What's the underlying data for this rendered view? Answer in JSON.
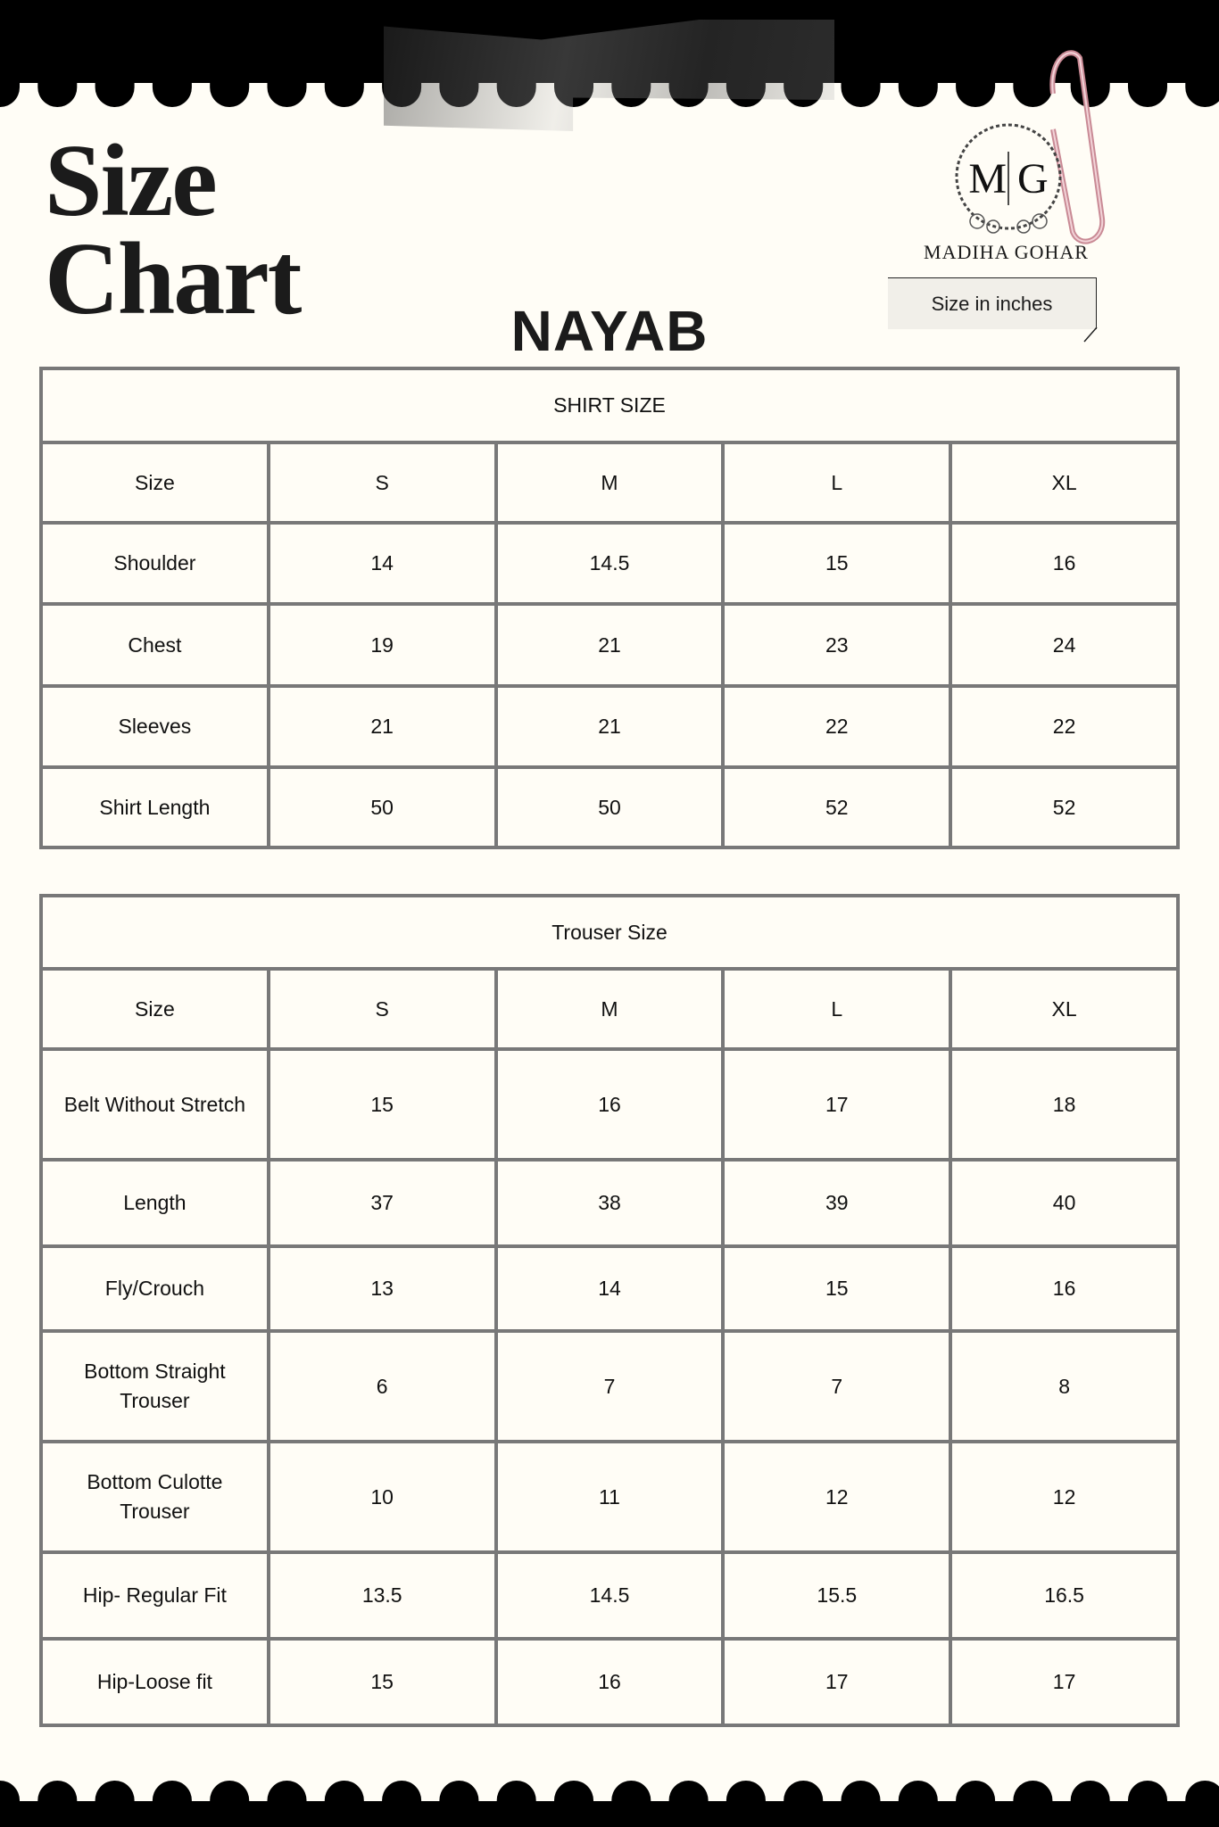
{
  "title": "Size Chart",
  "title_line1": "Size",
  "title_line2": "Chart",
  "product": "NAYAB",
  "brand": {
    "name": "MADIHA GOHAR",
    "monogram": "M|G"
  },
  "note": "Size in inches",
  "colors": {
    "background": "#fffdf6",
    "band": "#000000",
    "border": "#787878",
    "paperclip": "#d9a0aa"
  },
  "shirt": {
    "heading": "SHIRT SIZE",
    "columns": [
      "Size",
      "S",
      "M",
      "L",
      "XL"
    ],
    "rows": [
      [
        "Shoulder",
        "14",
        "14.5",
        "15",
        "16"
      ],
      [
        "Chest",
        "19",
        "21",
        "23",
        "24"
      ],
      [
        "Sleeves",
        "21",
        "21",
        "22",
        "22"
      ],
      [
        "Shirt Length",
        "50",
        "50",
        "52",
        "52"
      ]
    ]
  },
  "trouser": {
    "heading": "Trouser Size",
    "columns": [
      "Size",
      "S",
      "M",
      "L",
      "XL"
    ],
    "rows": [
      [
        "Belt Without Stretch",
        "15",
        "16",
        "17",
        "18"
      ],
      [
        "Length",
        "37",
        "38",
        "39",
        "40"
      ],
      [
        "Fly/Crouch",
        "13",
        "14",
        "15",
        "16"
      ],
      [
        "Bottom Straight Trouser",
        "6",
        "7",
        "7",
        "8"
      ],
      [
        "Bottom Culotte Trouser",
        "10",
        "11",
        "12",
        "12"
      ],
      [
        "Hip- Regular Fit",
        "13.5",
        "14.5",
        "15.5",
        "16.5"
      ],
      [
        "Hip-Loose fit",
        "15",
        "16",
        "17",
        "17"
      ]
    ]
  }
}
